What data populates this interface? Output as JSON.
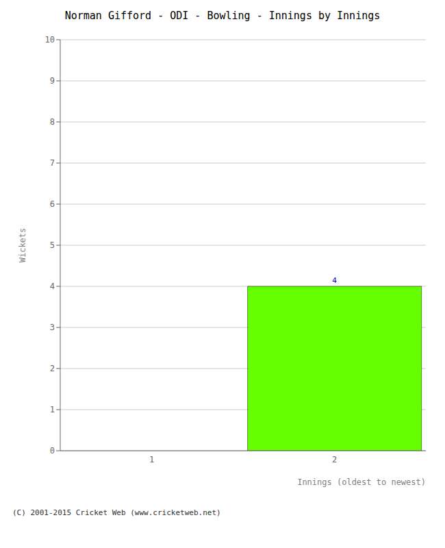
{
  "chart_data": {
    "type": "bar",
    "title": "Norman Gifford - ODI - Bowling - Innings by Innings",
    "xlabel": "Innings (oldest to newest)",
    "ylabel": "Wickets",
    "categories": [
      1,
      2
    ],
    "values": [
      0,
      4
    ],
    "color": "#66ff00",
    "ylim": [
      0,
      10
    ],
    "yticks": [
      0,
      1,
      2,
      3,
      4,
      5,
      6,
      7,
      8,
      9,
      10
    ],
    "grid": true,
    "data_labels": true,
    "annotations": [
      "(C) 2001-2015 Cricket Web (www.cricketweb.net)"
    ]
  }
}
